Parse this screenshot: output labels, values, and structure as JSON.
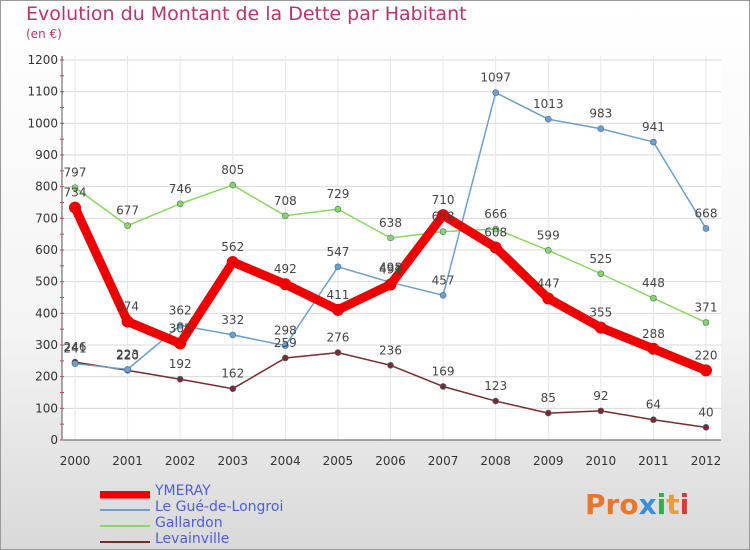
{
  "title": "Evolution du Montant de la Dette par Habitant",
  "subtitle": "(en €)",
  "logo": {
    "text": "Proxiti",
    "colors": [
      "#e8772e",
      "#e8772e",
      "#e8772e",
      "#3a8fd8",
      "#2db24a",
      "#e8a02e",
      "#d83a3a"
    ]
  },
  "chart_data": {
    "type": "line",
    "x": [
      "2000",
      "2001",
      "2002",
      "2003",
      "2004",
      "2005",
      "2006",
      "2007",
      "2008",
      "2009",
      "2010",
      "2011",
      "2012"
    ],
    "ylim": [
      0,
      1200
    ],
    "yticks": [
      "0",
      "100",
      "200",
      "300",
      "400",
      "500",
      "600",
      "700",
      "800",
      "900",
      "1000",
      "1100",
      "1200"
    ],
    "grid": true,
    "legend_position": "bottom-left",
    "series": [
      {
        "name": "YMERAY",
        "color": "#ee0000",
        "values": [
          734,
          374,
          305,
          562,
          492,
          411,
          491,
          710,
          608,
          447,
          355,
          288,
          220
        ],
        "labels": [
          "734",
          "374",
          "305",
          "562",
          "492",
          "411",
          "491",
          "710",
          "608",
          "447",
          "355",
          "288",
          "220"
        ]
      },
      {
        "name": "Le Gué-de-Longroi",
        "color": "#6b9fd0",
        "values": [
          241,
          223,
          362,
          332,
          298,
          547,
          498,
          457,
          1097,
          1013,
          983,
          941,
          668
        ],
        "labels": [
          "241",
          "223",
          "362",
          "332",
          "298",
          "547",
          "498",
          "457",
          "1097",
          "1013",
          "983",
          "941",
          "668"
        ]
      },
      {
        "name": "Gallardon",
        "color": "#88d860",
        "values": [
          797,
          677,
          746,
          805,
          708,
          729,
          638,
          658,
          666,
          599,
          525,
          448,
          371
        ],
        "labels": [
          "797",
          "677",
          "746",
          "805",
          "708",
          "729",
          "638",
          "658",
          "666",
          "599",
          "525",
          "448",
          "371"
        ]
      },
      {
        "name": "Levainville",
        "color": "#7a2a2a",
        "values": [
          246,
          220,
          192,
          162,
          259,
          276,
          236,
          169,
          123,
          85,
          92,
          64,
          40
        ],
        "labels": [
          "246",
          "220",
          "192",
          "162",
          "259",
          "276",
          "236",
          "169",
          "123",
          "85",
          "92",
          "64",
          "40"
        ]
      }
    ]
  }
}
